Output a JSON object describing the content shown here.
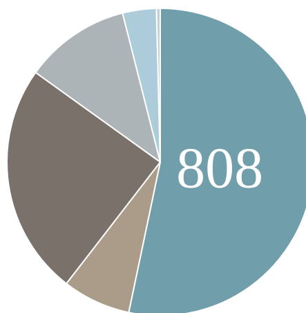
{
  "chart_data": {
    "type": "pie",
    "start_angle_deg": 0,
    "direction": "clockwise",
    "slices": [
      {
        "value": 808,
        "color": "#709eaa",
        "label": "808"
      },
      {
        "value": 109,
        "color": "#ab9c89",
        "label": ""
      },
      {
        "value": 370,
        "color": "#7b716b",
        "label": ""
      },
      {
        "value": 169,
        "color": "#acb4b8",
        "label": ""
      },
      {
        "value": 54,
        "color": "#acccd9",
        "label": ""
      },
      {
        "value": 6,
        "color": "#c2cfd6",
        "label": ""
      }
    ],
    "stroke_color": "#ffffff"
  }
}
